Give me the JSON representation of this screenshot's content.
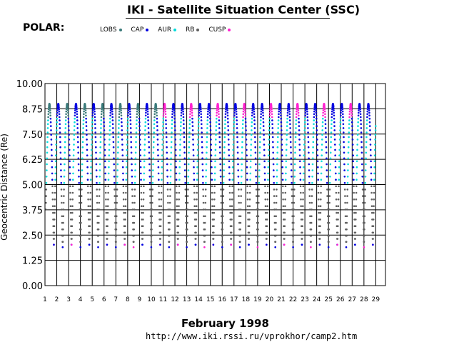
{
  "title": "IKI - Satellite Situation Center (SSC)",
  "satellite": "POLAR:",
  "footer": {
    "month": "February     1998",
    "url": "http://www.iki.rssi.ru/vprokhor/camp2.htm"
  },
  "colors": {
    "LOBS": "#3a7a7a",
    "CAP": "#0000e0",
    "AUR": "#00dcdc",
    "RB": "#606060",
    "CUSP": "#ff20d0"
  },
  "chart_data": {
    "type": "scatter",
    "ylabel": "Geocentric Distance (Re)",
    "xlim": [
      1,
      29
    ],
    "ylim": [
      0,
      10
    ],
    "y_ticks": [
      "0.00",
      "1.25",
      "2.50",
      "3.75",
      "5.00",
      "6.25",
      "7.50",
      "8.75",
      "10.00"
    ],
    "x_ticks": [
      "1",
      "2",
      "3",
      "4",
      "5",
      "6",
      "7",
      "8",
      "9",
      "10",
      "11",
      "12",
      "13",
      "14",
      "15",
      "16",
      "17",
      "18",
      "19",
      "20",
      "21",
      "22",
      "23",
      "24",
      "25",
      "26",
      "27",
      "28",
      "29"
    ],
    "orbit_period_days": 0.75,
    "apogee_re": 9.0,
    "perigee_re": 1.9,
    "series": [
      {
        "name": "LOBS",
        "region": "outer apogee arc (late Feb 1-11)"
      },
      {
        "name": "CAP",
        "region": "apogee arc and inbound passes"
      },
      {
        "name": "AUR",
        "region": "mid-altitude passes 5-8 Re"
      },
      {
        "name": "RB",
        "region": "low-altitude passes below 5 Re"
      },
      {
        "name": "CUSP",
        "region": "apogee arcs from Feb 11 onward"
      }
    ]
  }
}
